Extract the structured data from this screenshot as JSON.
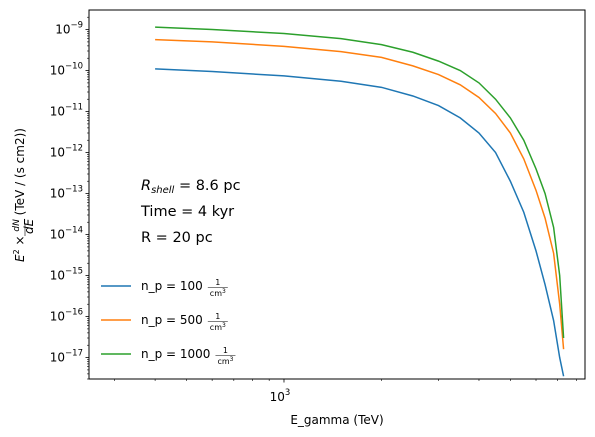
{
  "chart_data": {
    "type": "line",
    "xlabel": "E_gamma (TeV)",
    "ylabel": "E^2 × dN/dE (TeV / (s cm2))",
    "x_scale": "log",
    "y_scale": "log",
    "xlim": [
      250,
      8500
    ],
    "ylim": [
      3e-18,
      3e-09
    ],
    "x_tick_labels": [
      {
        "value": 1000,
        "mantissa": "10",
        "exp": "3"
      }
    ],
    "y_tick_labels": [
      {
        "value": 1e-09,
        "mantissa": "10",
        "exp": "−9"
      },
      {
        "value": 1e-10,
        "mantissa": "10",
        "exp": "−10"
      },
      {
        "value": 1e-11,
        "mantissa": "10",
        "exp": "−11"
      },
      {
        "value": 1e-12,
        "mantissa": "10",
        "exp": "−12"
      },
      {
        "value": 1e-13,
        "mantissa": "10",
        "exp": "−13"
      },
      {
        "value": 1e-14,
        "mantissa": "10",
        "exp": "−14"
      },
      {
        "value": 1e-15,
        "mantissa": "10",
        "exp": "−15"
      },
      {
        "value": 1e-16,
        "mantissa": "10",
        "exp": "−16"
      },
      {
        "value": 1e-17,
        "mantissa": "10",
        "exp": "−17"
      }
    ],
    "annotations": [
      {
        "id": "rshell",
        "symbol": "R",
        "subscript": "shell",
        "text": " = 8.6 pc"
      },
      {
        "id": "time",
        "text": "Time = 4 kyr"
      },
      {
        "id": "radius",
        "text": "R = 20 pc"
      }
    ],
    "legend_placement": "lower-left",
    "legend_unit_numerator": "1",
    "legend_unit_denominator": "cm",
    "legend_unit_exponent": "3",
    "grid": false,
    "series": [
      {
        "name": "n_p = 100",
        "color": "#1f77b4",
        "x": [
          400,
          600,
          1000,
          1500,
          2000,
          2500,
          3000,
          3500,
          4000,
          4500,
          5000,
          5500,
          6000,
          6400,
          6800,
          7100,
          7300
        ],
        "y": [
          1.1e-10,
          9.5e-11,
          7.4e-11,
          5.5e-11,
          3.9e-11,
          2.4e-11,
          1.4e-11,
          7e-12,
          3e-12,
          1e-12,
          2e-13,
          3.5e-14,
          4e-15,
          6e-16,
          8e-17,
          1e-17,
          3.5e-18
        ]
      },
      {
        "name": "n_p = 500",
        "color": "#ff7f0e",
        "x": [
          400,
          600,
          1000,
          1500,
          2000,
          2500,
          3000,
          3500,
          4000,
          4500,
          5000,
          5500,
          6000,
          6400,
          6800,
          7100,
          7300
        ],
        "y": [
          5.7e-10,
          5e-10,
          3.9e-10,
          2.9e-10,
          2.1e-10,
          1.3e-10,
          8e-11,
          4.5e-11,
          2.2e-11,
          9e-12,
          3e-12,
          7e-13,
          1.2e-13,
          2.5e-14,
          3.5e-15,
          2e-16,
          1.6e-17
        ]
      },
      {
        "name": "n_p = 1000",
        "color": "#2ca02c",
        "x": [
          400,
          600,
          1000,
          1500,
          2000,
          2500,
          3000,
          3500,
          4000,
          4500,
          5000,
          5500,
          6000,
          6400,
          6800,
          7100,
          7300
        ],
        "y": [
          1.15e-09,
          1e-09,
          8e-10,
          6e-10,
          4.3e-10,
          2.8e-10,
          1.7e-10,
          1e-10,
          5e-11,
          2e-11,
          7e-12,
          2e-12,
          4e-13,
          1e-13,
          1.5e-14,
          1e-15,
          3e-17
        ]
      }
    ]
  }
}
